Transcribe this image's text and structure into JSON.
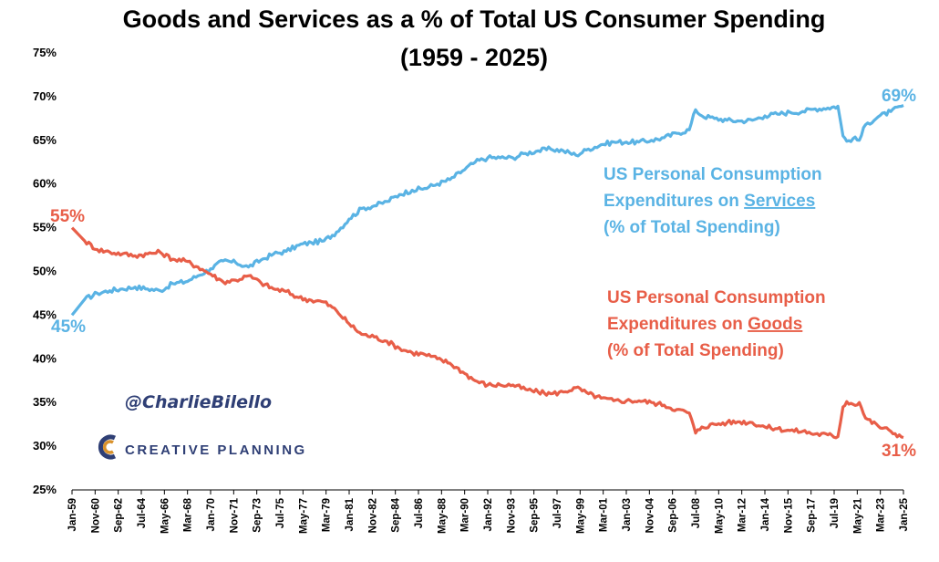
{
  "colors": {
    "services": "#5ab3e4",
    "goods": "#e85e48",
    "brand": "#2f3f75",
    "logo_accent": "#d9922b"
  },
  "branding": {
    "handle": "@CharlieBilello",
    "logo_text": "CREATIVE PLANNING",
    "logo_icon": "creative-planning-logo-icon"
  },
  "chart_data": {
    "type": "line",
    "title": "Goods and Services as a % of Total US Consumer Spending",
    "subtitle": "(1959 - 2025)",
    "xlabel": "",
    "ylabel": "",
    "ylim": [
      25,
      75
    ],
    "xlim": [
      1959.0,
      2025.0
    ],
    "yticks": [
      "25%",
      "30%",
      "35%",
      "40%",
      "45%",
      "50%",
      "55%",
      "60%",
      "65%",
      "70%",
      "75%"
    ],
    "xticks": [
      "Jan-59",
      "Nov-60",
      "Sep-62",
      "Jul-64",
      "May-66",
      "Mar-68",
      "Jan-70",
      "Nov-71",
      "Sep-73",
      "Jul-75",
      "May-77",
      "Mar-79",
      "Jan-81",
      "Nov-82",
      "Sep-84",
      "Jul-86",
      "May-88",
      "Mar-90",
      "Jan-92",
      "Nov-93",
      "Sep-95",
      "Jul-97",
      "May-99",
      "Mar-01",
      "Jan-03",
      "Nov-04",
      "Sep-06",
      "Jul-08",
      "May-10",
      "Mar-12",
      "Jan-14",
      "Nov-15",
      "Sep-17",
      "Jul-19",
      "May-21",
      "Mar-23",
      "Jan-25"
    ],
    "grid": false,
    "legend": "none",
    "series": [
      {
        "name": "US Personal Consumption Expenditures on Services (% of Total Spending)",
        "color": "#5ab3e4",
        "x": [
          1959.0,
          1960.0,
          1961.0,
          1962.0,
          1963.0,
          1964.0,
          1965.0,
          1966.0,
          1967.0,
          1968.0,
          1969.0,
          1970.0,
          1971.0,
          1972.0,
          1973.0,
          1974.0,
          1975.0,
          1976.0,
          1977.0,
          1978.0,
          1979.0,
          1980.0,
          1981.0,
          1982.0,
          1983.0,
          1984.0,
          1985.0,
          1986.0,
          1987.0,
          1988.0,
          1989.0,
          1990.0,
          1991.0,
          1992.0,
          1993.0,
          1994.0,
          1995.0,
          1996.0,
          1997.0,
          1998.0,
          1999.0,
          2000.0,
          2001.0,
          2002.0,
          2003.0,
          2004.0,
          2005.0,
          2006.0,
          2007.0,
          2008.0,
          2008.5,
          2009.0,
          2010.0,
          2011.0,
          2012.0,
          2013.0,
          2014.0,
          2015.0,
          2016.0,
          2017.0,
          2018.0,
          2019.0,
          2019.8,
          2020.2,
          2020.5,
          2021.0,
          2021.5,
          2022.0,
          2023.0,
          2024.0,
          2025.0
        ],
        "y": [
          45,
          46.8,
          47.5,
          47.8,
          48.0,
          48.2,
          48.0,
          47.8,
          48.6,
          48.8,
          49.5,
          50.3,
          51.2,
          51.0,
          50.5,
          51.3,
          52.0,
          52.3,
          53.0,
          53.3,
          53.5,
          54.5,
          56.0,
          57.2,
          57.5,
          58.0,
          58.8,
          59.3,
          59.5,
          60.0,
          60.5,
          61.5,
          62.5,
          63.0,
          63.0,
          63.0,
          63.5,
          63.8,
          64.0,
          63.8,
          63.3,
          64.0,
          64.5,
          64.8,
          64.8,
          64.8,
          65.0,
          65.3,
          65.8,
          66.2,
          68.5,
          67.8,
          67.5,
          67.3,
          67.2,
          67.3,
          67.8,
          68.0,
          68.2,
          68.3,
          68.6,
          68.7,
          68.9,
          65.5,
          64.9,
          65.2,
          65.0,
          66.8,
          67.7,
          68.3,
          69.0
        ],
        "start_label": "45%",
        "end_label": "69%"
      },
      {
        "name": "US Personal Consumption Expenditures on Goods (% of Total Spending)",
        "color": "#e85e48",
        "x": [
          1959.0,
          1960.0,
          1961.0,
          1962.0,
          1963.0,
          1964.0,
          1965.0,
          1966.0,
          1967.0,
          1968.0,
          1969.0,
          1970.0,
          1971.0,
          1972.0,
          1973.0,
          1974.0,
          1975.0,
          1976.0,
          1977.0,
          1978.0,
          1979.0,
          1980.0,
          1981.0,
          1982.0,
          1983.0,
          1984.0,
          1985.0,
          1986.0,
          1987.0,
          1988.0,
          1989.0,
          1990.0,
          1991.0,
          1992.0,
          1993.0,
          1994.0,
          1995.0,
          1996.0,
          1997.0,
          1998.0,
          1999.0,
          2000.0,
          2001.0,
          2002.0,
          2003.0,
          2004.0,
          2005.0,
          2006.0,
          2007.0,
          2008.0,
          2008.5,
          2009.0,
          2010.0,
          2011.0,
          2012.0,
          2013.0,
          2014.0,
          2015.0,
          2016.0,
          2017.0,
          2018.0,
          2019.0,
          2019.8,
          2020.2,
          2020.5,
          2021.0,
          2021.5,
          2022.0,
          2023.0,
          2024.0,
          2025.0
        ],
        "y": [
          55,
          53.5,
          52.5,
          52.2,
          52.0,
          51.8,
          52.0,
          52.2,
          51.4,
          51.2,
          50.5,
          49.7,
          48.8,
          49.0,
          49.5,
          48.7,
          48.0,
          47.7,
          47.0,
          46.7,
          46.5,
          45.5,
          44.0,
          42.8,
          42.5,
          42.0,
          41.2,
          40.7,
          40.5,
          40.0,
          39.5,
          38.5,
          37.5,
          37.0,
          37.0,
          37.0,
          36.5,
          36.2,
          36.0,
          36.2,
          36.7,
          36.0,
          35.5,
          35.2,
          35.2,
          35.2,
          35.0,
          34.7,
          34.2,
          33.8,
          31.5,
          32.2,
          32.5,
          32.7,
          32.8,
          32.7,
          32.2,
          32.0,
          31.8,
          31.7,
          31.4,
          31.3,
          31.1,
          34.5,
          35.1,
          34.8,
          35.0,
          33.2,
          32.3,
          31.7,
          31.0
        ],
        "start_label": "55%",
        "end_label": "31%"
      }
    ],
    "annotations": [
      {
        "series": 0,
        "lines": [
          {
            "pre": "US Personal Consumption",
            "u": "",
            "post": ""
          },
          {
            "pre": "Expenditures on ",
            "u": "Services",
            "post": ""
          },
          {
            "pre": "(% of Total Spending)",
            "u": "",
            "post": ""
          }
        ]
      },
      {
        "series": 1,
        "lines": [
          {
            "pre": "US Personal Consumption",
            "u": "",
            "post": ""
          },
          {
            "pre": "Expenditures on ",
            "u": "Goods",
            "post": ""
          },
          {
            "pre": "(% of Total Spending)",
            "u": "",
            "post": ""
          }
        ]
      }
    ]
  }
}
